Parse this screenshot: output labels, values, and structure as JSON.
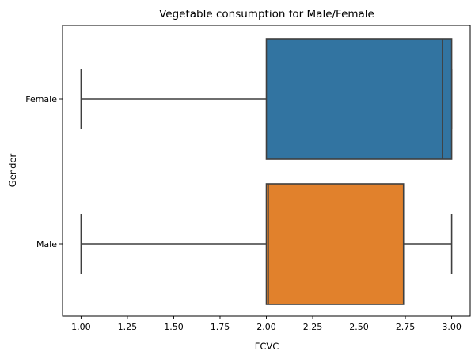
{
  "chart_data": {
    "type": "boxplot",
    "orientation": "horizontal",
    "title": "Vegetable consumption for Male/Female",
    "xlabel": "FCVC",
    "ylabel": "Gender",
    "xlim": [
      0.9,
      3.1
    ],
    "xticks": [
      1.0,
      1.25,
      1.5,
      1.75,
      2.0,
      2.25,
      2.5,
      2.75,
      3.0
    ],
    "xtick_labels": [
      "1.00",
      "1.25",
      "1.50",
      "1.75",
      "2.00",
      "2.25",
      "2.50",
      "2.75",
      "3.00"
    ],
    "categories": [
      "Female",
      "Male"
    ],
    "grid": false,
    "boxes": [
      {
        "category": "Female",
        "color": "#3274a1",
        "whisker_low": 1.0,
        "q1": 2.0,
        "median": 2.95,
        "q3": 3.0,
        "whisker_high": 3.0
      },
      {
        "category": "Male",
        "color": "#e1812c",
        "whisker_low": 1.0,
        "q1": 2.0,
        "median": 2.01,
        "q3": 2.74,
        "whisker_high": 3.0
      }
    ]
  }
}
